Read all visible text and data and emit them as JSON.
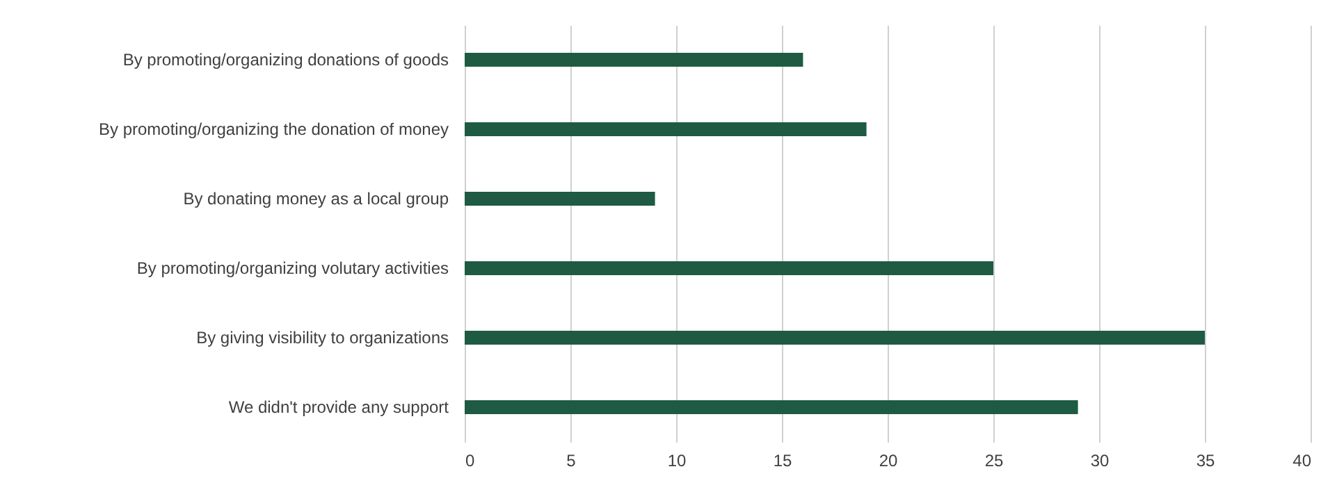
{
  "chart_data": {
    "type": "bar",
    "orientation": "horizontal",
    "categories": [
      "By promoting/organizing donations of goods",
      "By promoting/organizing the donation of money",
      "By donating money as a local group",
      "By promoting/organizing volutary activities",
      "By giving visibility to organizations",
      "We didn't provide any support"
    ],
    "values": [
      16,
      19,
      9,
      25,
      35,
      29
    ],
    "color": "#1e5b42",
    "xlim": [
      0,
      40
    ],
    "xticks": [
      0,
      5,
      10,
      15,
      20,
      25,
      30,
      35,
      40
    ],
    "grid": "x"
  }
}
